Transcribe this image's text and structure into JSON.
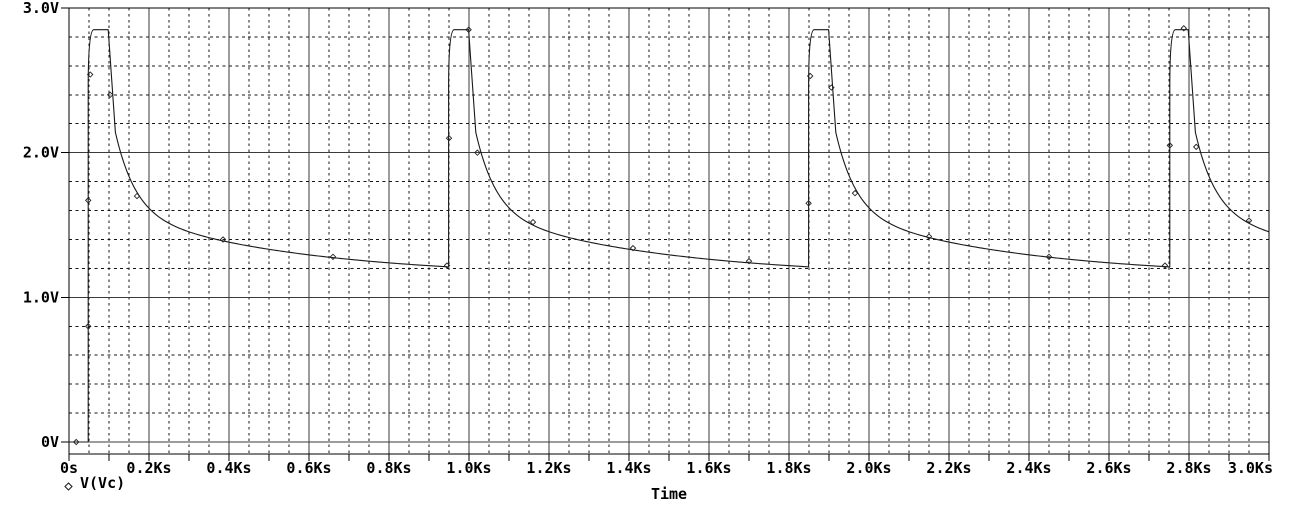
{
  "window": {
    "background": "#ffffff"
  },
  "legend": {
    "label": "V(Vc)",
    "marker": "diamond"
  },
  "colors": {
    "trace": "#1a1a1a",
    "grid_major": "#3a3a3a",
    "grid_minor": "#141414",
    "border": "#000000",
    "text": "#000000",
    "background": "#ffffff"
  },
  "chart_data": {
    "type": "line",
    "title": "",
    "xlabel": "Time",
    "ylabel": "",
    "x_unit": "Ks",
    "y_unit": "V",
    "xlim": [
      0,
      3.0
    ],
    "ylim": [
      0,
      3.0
    ],
    "x_tick_labels": [
      "0s",
      "0.2Ks",
      "0.4Ks",
      "0.6Ks",
      "0.8Ks",
      "1.0Ks",
      "1.2Ks",
      "1.4Ks",
      "1.6Ks",
      "1.8Ks",
      "2.0Ks",
      "2.2Ks",
      "2.4Ks",
      "2.6Ks",
      "2.8Ks",
      "3.0Ks"
    ],
    "x_major_step": 0.2,
    "x_minor_step": 0.05,
    "x_tick_mark_step": 0.1,
    "y_tick_labels": [
      "0V",
      "1.0V",
      "2.0V",
      "3.0V"
    ],
    "y_major_step": 1.0,
    "y_minor_step": 0.2,
    "grid": {
      "major": "solid",
      "minor": "dashed"
    },
    "legend_position": "bottom-left",
    "series_name": "V(Vc)",
    "waveform": {
      "kind": "relaxation-oscillator",
      "initial_v": 0.0,
      "peak_v": 2.85,
      "pre_spike_baseline_v": 1.2,
      "rise_times_ks": [
        0.048,
        0.949,
        1.849,
        2.752
      ],
      "fall_times_ks": [
        0.098,
        0.999,
        1.899,
        2.798
      ],
      "rise_shoulder_v": 2.45,
      "rise_width_ks": 0.014,
      "fall_width_ks": 0.018,
      "fall_knee_v": 2.14,
      "decay": {
        "v_inf": 1.14,
        "a_fast": 0.55,
        "tau_fast_ks": 0.05,
        "a_slow": 0.45,
        "tau_slow_ks": 0.45
      },
      "end_time_ks": 3.0
    },
    "marker_points": [
      [
        0.018,
        0.0
      ],
      [
        0.048,
        0.8
      ],
      [
        0.048,
        1.67
      ],
      [
        0.053,
        2.54
      ],
      [
        0.103,
        2.4
      ],
      [
        0.17,
        1.7
      ],
      [
        0.385,
        1.4
      ],
      [
        0.66,
        1.28
      ],
      [
        0.945,
        1.22
      ],
      [
        0.95,
        2.1
      ],
      [
        0.999,
        2.85
      ],
      [
        1.021,
        2.0
      ],
      [
        1.16,
        1.52
      ],
      [
        1.41,
        1.34
      ],
      [
        1.7,
        1.25
      ],
      [
        1.849,
        1.65
      ],
      [
        1.853,
        2.53
      ],
      [
        1.906,
        2.45
      ],
      [
        1.965,
        1.72
      ],
      [
        2.15,
        1.42
      ],
      [
        2.45,
        1.28
      ],
      [
        2.74,
        1.22
      ],
      [
        2.752,
        2.05
      ],
      [
        2.787,
        2.86
      ],
      [
        2.818,
        2.04
      ],
      [
        2.95,
        1.53
      ]
    ]
  }
}
